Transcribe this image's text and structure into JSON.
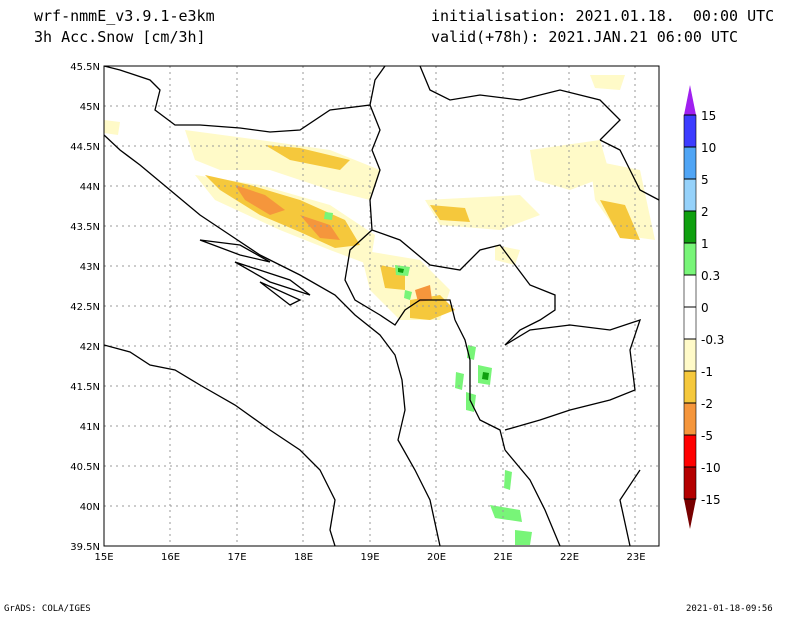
{
  "header": {
    "model": "wrf-nmmE_v3.9.1-e3km",
    "variable": "3h Acc.Snow [cm/3h]",
    "initialisation": "initialisation: 2021.01.18.  00:00 UTC",
    "valid": "valid(+78h): 2021.JAN.21 06:00 UTC"
  },
  "axes": {
    "lon_labels": [
      "15E",
      "16E",
      "17E",
      "18E",
      "19E",
      "20E",
      "21E",
      "22E",
      "23E"
    ],
    "lat_labels": [
      "45.5N",
      "45N",
      "44.5N",
      "44N",
      "43.5N",
      "43N",
      "42.5N",
      "42N",
      "41.5N",
      "41N",
      "40.5N",
      "40N",
      "39.5N"
    ]
  },
  "colorbar": {
    "labels": [
      "15",
      "10",
      "5",
      "2",
      "1",
      "0.3",
      "0",
      "-0.3",
      "-1",
      "-2",
      "-5",
      "-10",
      "-15"
    ],
    "colors": [
      "#a020f0",
      "#3c3cff",
      "#50a5f5",
      "#96d2fa",
      "#0fa00f",
      "#78f578",
      "#ffffff",
      "#ffffff",
      "#fffac8",
      "#f5c83c",
      "#f5963c",
      "#ff0000",
      "#b40000",
      "#780000"
    ]
  },
  "footer": {
    "left": "GrADS: COLA/IGES",
    "right": "2021-01-18-09:56"
  }
}
